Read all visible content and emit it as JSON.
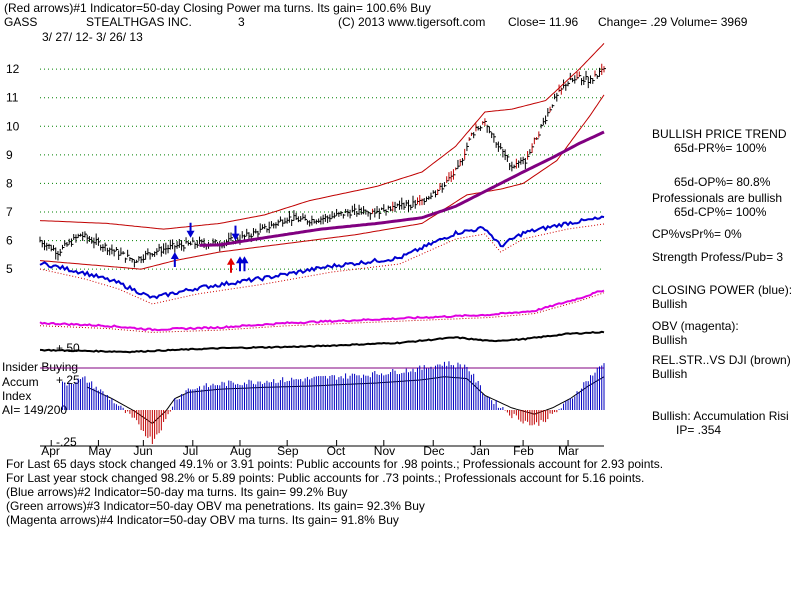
{
  "header": {
    "line1": "(Red arrows)#1 Indicator=50-day Closing Power ma turns. Its gain= 100.6% Buy",
    "symbol": "GASS",
    "company": "STEALTHGAS INC.",
    "number": "3",
    "copyright": "(C) 2013 www.tigersoft.com",
    "close": "Close=  11.96",
    "change": "Change= .29 Volume= 3969",
    "date_range": "3/ 27/ 12-  3/ 26/ 13"
  },
  "right_panel": {
    "trend_title": "BULLISH PRICE TREND",
    "pr": "65d-PR%= 100%",
    "op": "65d-OP%= 80.8%",
    "pros": "Professionals are bullish",
    "cp": "65d-CP%= 100%",
    "cpvspr": "CP%vsPr%=  0%",
    "strength": "Strength Profess/Pub= 3",
    "cp_title": "CLOSING POWER (blue):",
    "cp_value": "Bullish",
    "obv_title": "OBV (magenta):",
    "obv_value": "Bullish",
    "rel_title": "REL.STR..VS DJI (brown)",
    "rel_value": "Bullish",
    "accum_title": "Bullish: Accumulation Risi",
    "ip": "IP=  .354"
  },
  "left_labels": {
    "insider": "Insider Buying",
    "accum": "Accum",
    "index": "Index",
    "ai": "AI= 149/200",
    "plus50": "+.50",
    "plus25": "+.25",
    "minus25": "-.25"
  },
  "footer": {
    "line1": "For Last 65 days stock changed  49.1% or  3.91 points:  Public accounts for  .98 points.;  Professionals account for  2.93 points.",
    "line2": "For Last year stock changed  98.2% or  5.89 points:  Public accounts for  .73 points.;  Professionals account for  5.16 points.",
    "line3": "(Blue arrows)#2 Indicator=50-day ma turns. Its gain= 99.2% Buy",
    "line4": "(Green arrows)#3 Indicator=50-day OBV ma penetrations. Its gain= 92.3% Buy",
    "line5": "(Magenta arrows)#4 Indicator=50-day OBV ma turns. Its gain= 91.8% Buy"
  },
  "chart_data": {
    "type": "line",
    "title": "GASS STEALTHGAS INC. daily price, 3/27/12 - 3/26/13",
    "y_ticks": [
      12,
      11,
      10,
      9,
      8,
      7,
      6,
      5
    ],
    "ylim": [
      4.55,
      12.6
    ],
    "months": [
      "Apr",
      "May",
      "Jun",
      "Jul",
      "Aug",
      "Sep",
      "Oct",
      "Nov",
      "Dec",
      "Jan",
      "Feb",
      "Mar"
    ],
    "month_index": [
      5,
      26,
      46,
      68,
      89,
      110,
      132,
      153,
      175,
      196,
      215,
      235
    ],
    "n_days": 252,
    "price_knots": [
      [
        0,
        6.0
      ],
      [
        8,
        5.6
      ],
      [
        18,
        6.2
      ],
      [
        26,
        5.9
      ],
      [
        34,
        5.6
      ],
      [
        42,
        5.3
      ],
      [
        50,
        5.6
      ],
      [
        60,
        5.8
      ],
      [
        70,
        5.9
      ],
      [
        80,
        5.9
      ],
      [
        90,
        6.1
      ],
      [
        100,
        6.4
      ],
      [
        110,
        6.8
      ],
      [
        118,
        6.7
      ],
      [
        128,
        6.8
      ],
      [
        138,
        7.0
      ],
      [
        148,
        7.0
      ],
      [
        158,
        7.2
      ],
      [
        168,
        7.3
      ],
      [
        178,
        7.8
      ],
      [
        186,
        8.5
      ],
      [
        192,
        9.7
      ],
      [
        198,
        10.2
      ],
      [
        204,
        9.3
      ],
      [
        210,
        8.6
      ],
      [
        216,
        8.8
      ],
      [
        222,
        9.8
      ],
      [
        228,
        10.8
      ],
      [
        234,
        11.5
      ],
      [
        240,
        11.7
      ],
      [
        245,
        11.6
      ],
      [
        251,
        11.96
      ]
    ],
    "ma50_knots": [
      [
        0,
        6.0
      ],
      [
        30,
        5.9
      ],
      [
        55,
        5.8
      ],
      [
        80,
        5.85
      ],
      [
        100,
        6.1
      ],
      [
        125,
        6.4
      ],
      [
        150,
        6.6
      ],
      [
        170,
        6.8
      ],
      [
        185,
        7.2
      ],
      [
        200,
        7.8
      ],
      [
        215,
        8.4
      ],
      [
        228,
        8.9
      ],
      [
        240,
        9.4
      ],
      [
        251,
        9.8
      ]
    ],
    "band_upper_knots": [
      [
        0,
        6.7
      ],
      [
        30,
        6.6
      ],
      [
        55,
        6.4
      ],
      [
        80,
        6.6
      ],
      [
        100,
        6.9
      ],
      [
        120,
        7.4
      ],
      [
        150,
        7.9
      ],
      [
        170,
        8.4
      ],
      [
        185,
        9.3
      ],
      [
        198,
        10.5
      ],
      [
        210,
        10.6
      ],
      [
        225,
        10.9
      ],
      [
        240,
        12.0
      ],
      [
        251,
        12.9
      ]
    ],
    "band_lower_knots": [
      [
        0,
        5.3
      ],
      [
        30,
        5.1
      ],
      [
        45,
        5.0
      ],
      [
        60,
        5.3
      ],
      [
        80,
        5.6
      ],
      [
        110,
        5.9
      ],
      [
        140,
        6.2
      ],
      [
        170,
        6.6
      ],
      [
        190,
        7.6
      ],
      [
        205,
        7.8
      ],
      [
        215,
        8.0
      ],
      [
        230,
        8.8
      ],
      [
        245,
        10.4
      ],
      [
        251,
        11.1
      ]
    ],
    "closing_power": [
      [
        0,
        0.55
      ],
      [
        20,
        0.45
      ],
      [
        35,
        0.35
      ],
      [
        50,
        0.2
      ],
      [
        70,
        0.3
      ],
      [
        100,
        0.4
      ],
      [
        130,
        0.52
      ],
      [
        160,
        0.6
      ],
      [
        185,
        0.85
      ],
      [
        198,
        0.9
      ],
      [
        205,
        0.72
      ],
      [
        215,
        0.85
      ],
      [
        235,
        0.95
      ],
      [
        251,
        1.0
      ]
    ],
    "obv": [
      [
        0,
        0.4
      ],
      [
        30,
        0.35
      ],
      [
        50,
        0.28
      ],
      [
        80,
        0.32
      ],
      [
        110,
        0.4
      ],
      [
        140,
        0.45
      ],
      [
        170,
        0.5
      ],
      [
        200,
        0.55
      ],
      [
        220,
        0.62
      ],
      [
        240,
        0.85
      ],
      [
        251,
        1.0
      ]
    ],
    "rel_strength": [
      [
        0,
        0.5
      ],
      [
        40,
        0.45
      ],
      [
        80,
        0.55
      ],
      [
        120,
        0.6
      ],
      [
        160,
        0.7
      ],
      [
        185,
        0.85
      ],
      [
        200,
        0.75
      ],
      [
        215,
        0.8
      ],
      [
        235,
        0.95
      ],
      [
        251,
        1.0
      ]
    ],
    "accum_index": [
      [
        0,
        0.2
      ],
      [
        10,
        0.25
      ],
      [
        20,
        0.3
      ],
      [
        32,
        0.1
      ],
      [
        42,
        -0.1
      ],
      [
        50,
        -0.3
      ],
      [
        56,
        -0.1
      ],
      [
        60,
        0.1
      ],
      [
        66,
        0.2
      ],
      [
        80,
        0.25
      ],
      [
        100,
        0.28
      ],
      [
        120,
        0.3
      ],
      [
        150,
        0.35
      ],
      [
        170,
        0.4
      ],
      [
        180,
        0.45
      ],
      [
        190,
        0.42
      ],
      [
        198,
        0.15
      ],
      [
        210,
        -0.05
      ],
      [
        220,
        -0.15
      ],
      [
        228,
        -0.05
      ],
      [
        236,
        0.1
      ],
      [
        244,
        0.3
      ],
      [
        251,
        0.45
      ]
    ],
    "annotations": [
      "red arrows #1",
      "blue arrows #2",
      "green arrows #3",
      "magenta arrows #4"
    ]
  },
  "colors": {
    "price": "#000000",
    "ma": "#800080",
    "band": "#c00000",
    "cp": "#0000d0",
    "obv": "#e000e0",
    "rel": "#000000",
    "acc_pos": "#0000c0",
    "acc_neg": "#c00000",
    "grid": "#008000"
  }
}
